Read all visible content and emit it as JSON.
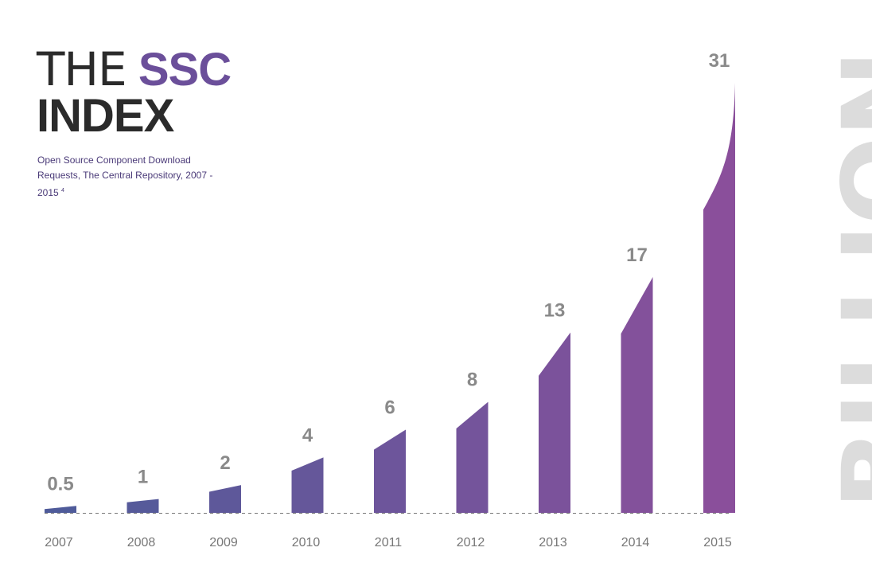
{
  "title": {
    "prefix": "THE",
    "highlight": "SSC",
    "line2": "INDEX"
  },
  "subtitle": {
    "text": "Open Source Component Download Requests, The Central Repository, 2007 - 2015",
    "footnote": "4"
  },
  "unit_label": "BILLION",
  "colors": {
    "bar_start": "#4f5b9a",
    "bar_end": "#8a4f9b",
    "value_label": "#8a8a8a",
    "year_label": "#777777",
    "baseline": "#777777",
    "title_accent": "#6b4f9a"
  },
  "chart_data": {
    "type": "bar",
    "title": "THE SSC INDEX",
    "subtitle": "Open Source Component Download Requests, The Central Repository, 2007 - 2015",
    "unit": "BILLION",
    "categories": [
      "2007",
      "2008",
      "2009",
      "2010",
      "2011",
      "2012",
      "2013",
      "2014",
      "2015"
    ],
    "values": [
      0.5,
      1,
      2,
      4,
      6,
      8,
      13,
      17,
      31
    ],
    "value_labels": [
      "0.5",
      "1",
      "2",
      "4",
      "6",
      "8",
      "13",
      "17",
      "31"
    ],
    "ylim": [
      0,
      31
    ],
    "grid": false,
    "legend": "none"
  }
}
